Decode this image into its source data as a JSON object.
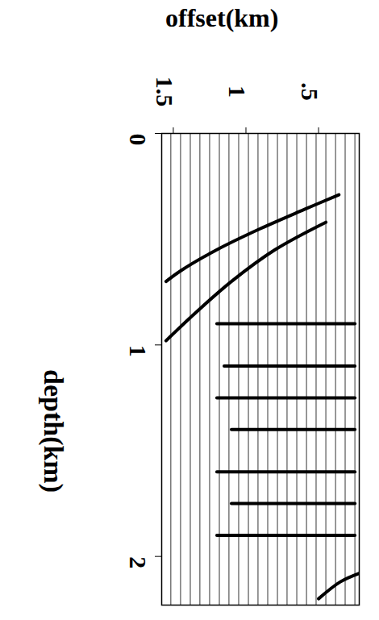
{
  "chart_data": {
    "type": "line",
    "xlabel": "offset(km)",
    "ylabel": "depth(km)",
    "xlim": [
      1.58,
      0.22
    ],
    "ylim": [
      0,
      2.23
    ],
    "xticks": [
      1.5,
      1,
      {
        "value": 0.5,
        "label": ".5"
      }
    ],
    "yticks": [
      0,
      1,
      2
    ],
    "trace_offsets": [
      0.25,
      0.317,
      0.383,
      0.45,
      0.517,
      0.583,
      0.65,
      0.717,
      0.783,
      0.85,
      0.917,
      0.983,
      1.05,
      1.117,
      1.183,
      1.25,
      1.317,
      1.383,
      1.45,
      1.517
    ],
    "series": [
      {
        "color": "#000000",
        "x": [
          0.36,
          0.6,
          0.9,
          1.2,
          1.45,
          1.55
        ],
        "values": [
          0.29,
          0.36,
          0.45,
          0.55,
          0.65,
          0.7
        ]
      },
      {
        "color": "#000000",
        "x": [
          0.45,
          0.8,
          1.1,
          1.35,
          1.55
        ],
        "values": [
          0.42,
          0.55,
          0.7,
          0.85,
          0.98
        ]
      },
      {
        "color": "#000000",
        "x": [
          0.25,
          1.2
        ],
        "values": [
          0.9,
          0.9
        ]
      },
      {
        "color": "#000000",
        "x": [
          0.25,
          1.15
        ],
        "values": [
          1.1,
          1.1
        ]
      },
      {
        "color": "#000000",
        "x": [
          0.25,
          1.2
        ],
        "values": [
          1.25,
          1.25
        ]
      },
      {
        "color": "#000000",
        "x": [
          0.25,
          1.1
        ],
        "values": [
          1.4,
          1.4
        ]
      },
      {
        "color": "#000000",
        "x": [
          0.25,
          1.2
        ],
        "values": [
          1.6,
          1.6
        ]
      },
      {
        "color": "#000000",
        "x": [
          0.25,
          1.1
        ],
        "values": [
          1.75,
          1.75
        ]
      },
      {
        "color": "#000000",
        "x": [
          0.25,
          1.2
        ],
        "values": [
          1.9,
          1.9
        ]
      },
      {
        "color": "#000000",
        "x": [
          0.5,
          0.35,
          0.22
        ],
        "values": [
          2.2,
          2.12,
          2.08
        ]
      }
    ],
    "tick_labels": true
  }
}
